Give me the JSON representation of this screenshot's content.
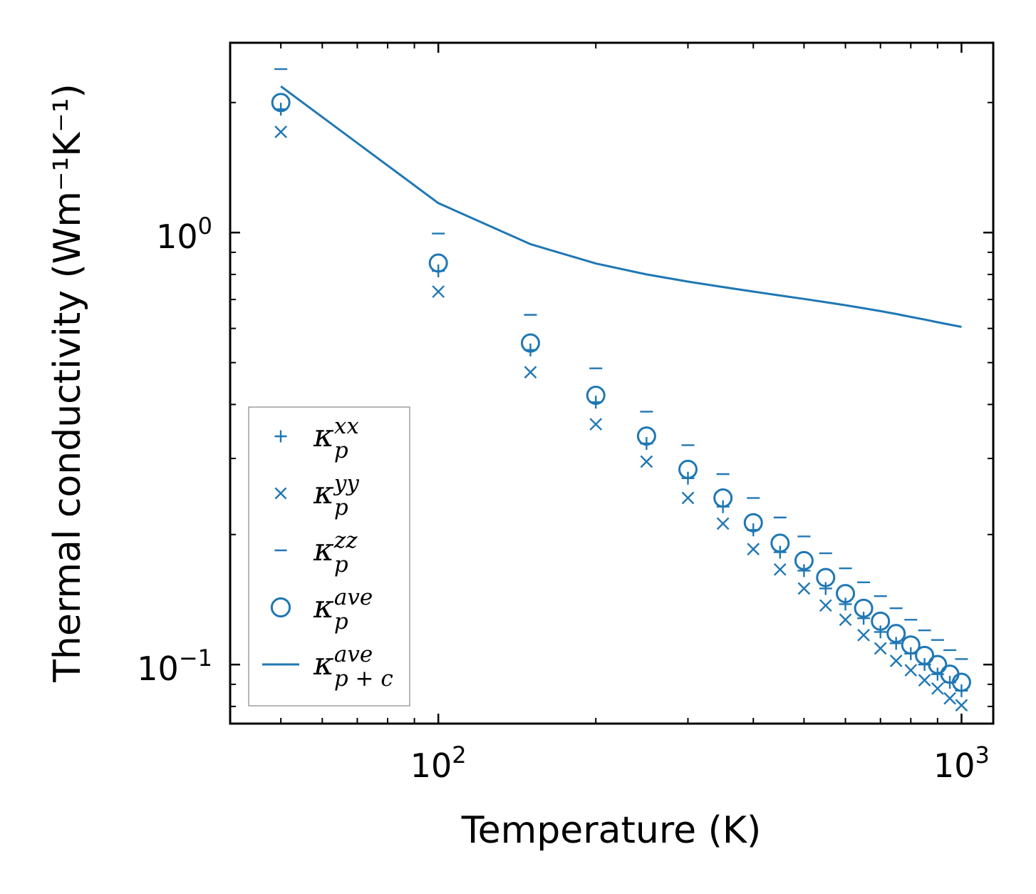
{
  "chart_data": {
    "type": "scatter",
    "title": "",
    "xlabel": "Temperature (K)",
    "ylabel": "Thermal conductivity (Wm⁻¹K⁻¹)",
    "xscale": "log",
    "yscale": "log",
    "xlim": [
      40,
      1150
    ],
    "ylim": [
      0.073,
      2.75
    ],
    "x_ticks": [
      {
        "value": 100,
        "base": "10",
        "exp": "2"
      },
      {
        "value": 1000,
        "base": "10",
        "exp": "3"
      }
    ],
    "y_ticks": [
      {
        "value": 1,
        "base": "10",
        "exp": "0"
      },
      {
        "value": 0.1,
        "base": "10",
        "exp": "−1"
      }
    ],
    "color": "#1f77b4",
    "legend_position": "lower-left",
    "x": [
      50,
      100,
      150,
      200,
      250,
      300,
      350,
      400,
      450,
      500,
      550,
      600,
      650,
      700,
      750,
      800,
      850,
      900,
      950,
      1000
    ],
    "series": [
      {
        "name": "xx",
        "base": "κ",
        "sub": "p",
        "sup": "xx",
        "marker": "plus",
        "values": [
          1.93,
          0.815,
          0.535,
          0.405,
          0.325,
          0.27,
          0.232,
          0.205,
          0.182,
          0.165,
          0.15,
          0.138,
          0.128,
          0.119,
          0.112,
          0.106,
          0.1,
          0.095,
          0.091,
          0.087
        ]
      },
      {
        "name": "yy",
        "base": "κ",
        "sub": "p",
        "sup": "yy",
        "marker": "x",
        "values": [
          1.71,
          0.73,
          0.475,
          0.36,
          0.295,
          0.243,
          0.212,
          0.185,
          0.166,
          0.15,
          0.137,
          0.127,
          0.117,
          0.109,
          0.102,
          0.097,
          0.092,
          0.088,
          0.0835,
          0.0805
        ]
      },
      {
        "name": "zz",
        "base": "κ",
        "sub": "p",
        "sup": "zz",
        "marker": "hline",
        "values": [
          2.39,
          0.995,
          0.645,
          0.485,
          0.385,
          0.322,
          0.276,
          0.243,
          0.219,
          0.198,
          0.181,
          0.167,
          0.155,
          0.144,
          0.135,
          0.127,
          0.12,
          0.114,
          0.108,
          0.103
        ]
      },
      {
        "name": "ave",
        "base": "κ",
        "sub": "p",
        "sup": "ave",
        "marker": "circle",
        "values": [
          2.0,
          0.85,
          0.555,
          0.42,
          0.338,
          0.283,
          0.243,
          0.213,
          0.191,
          0.174,
          0.159,
          0.146,
          0.135,
          0.126,
          0.118,
          0.111,
          0.105,
          0.1,
          0.095,
          0.091
        ]
      },
      {
        "name": "ave_pc",
        "base": "κ",
        "sub": "p + c",
        "sup": "ave",
        "marker": "line",
        "x": [
          50,
          100,
          150,
          200,
          250,
          300,
          350,
          400,
          450,
          500,
          550,
          600,
          650,
          700,
          750,
          800,
          850,
          900,
          950,
          1000
        ],
        "values": [
          2.18,
          1.17,
          0.94,
          0.848,
          0.8,
          0.77,
          0.748,
          0.73,
          0.715,
          0.702,
          0.69,
          0.679,
          0.668,
          0.658,
          0.648,
          0.638,
          0.629,
          0.62,
          0.612,
          0.605
        ]
      }
    ]
  }
}
